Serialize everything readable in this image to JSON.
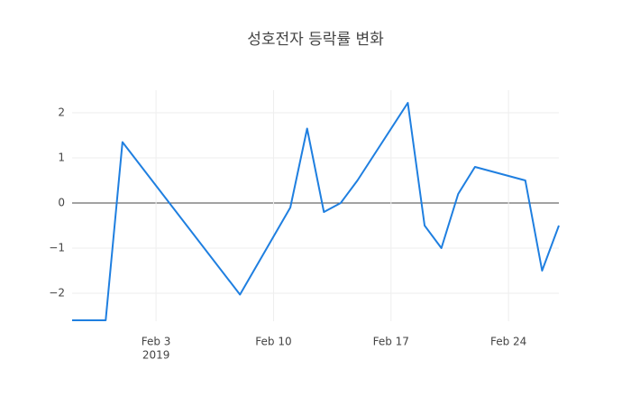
{
  "chart_data": {
    "type": "line",
    "title": "성호전자 등락률 변화",
    "x": [
      "2019-01-29",
      "2019-01-31",
      "2019-02-01",
      "2019-02-08",
      "2019-02-11",
      "2019-02-12",
      "2019-02-13",
      "2019-02-14",
      "2019-02-15",
      "2019-02-18",
      "2019-02-19",
      "2019-02-20",
      "2019-02-21",
      "2019-02-22",
      "2019-02-25",
      "2019-02-26",
      "2019-02-27"
    ],
    "series": [
      {
        "color": "#1f7fe0",
        "values": [
          -2.6,
          -2.6,
          1.35,
          -2.03,
          -0.1,
          1.65,
          -0.2,
          0.0,
          0.5,
          2.22,
          -0.5,
          -1.0,
          0.2,
          0.8,
          0.5,
          -1.5,
          -0.5
        ]
      }
    ],
    "xlim": [
      "2019-01-29",
      "2019-02-27"
    ],
    "xticks": [
      {
        "value": "2019-02-03",
        "label": "Feb 3"
      },
      {
        "value": "2019-02-10",
        "label": "Feb 10"
      },
      {
        "value": "2019-02-17",
        "label": "Feb 17"
      },
      {
        "value": "2019-02-24",
        "label": "Feb 24"
      }
    ],
    "xtick_year": "2019",
    "ylim": [
      -2.62,
      2.5
    ],
    "yticks": [
      {
        "value": -2,
        "label": "−2"
      },
      {
        "value": -1,
        "label": "−1"
      },
      0,
      1,
      2
    ],
    "grid": true,
    "zeroline": true
  }
}
